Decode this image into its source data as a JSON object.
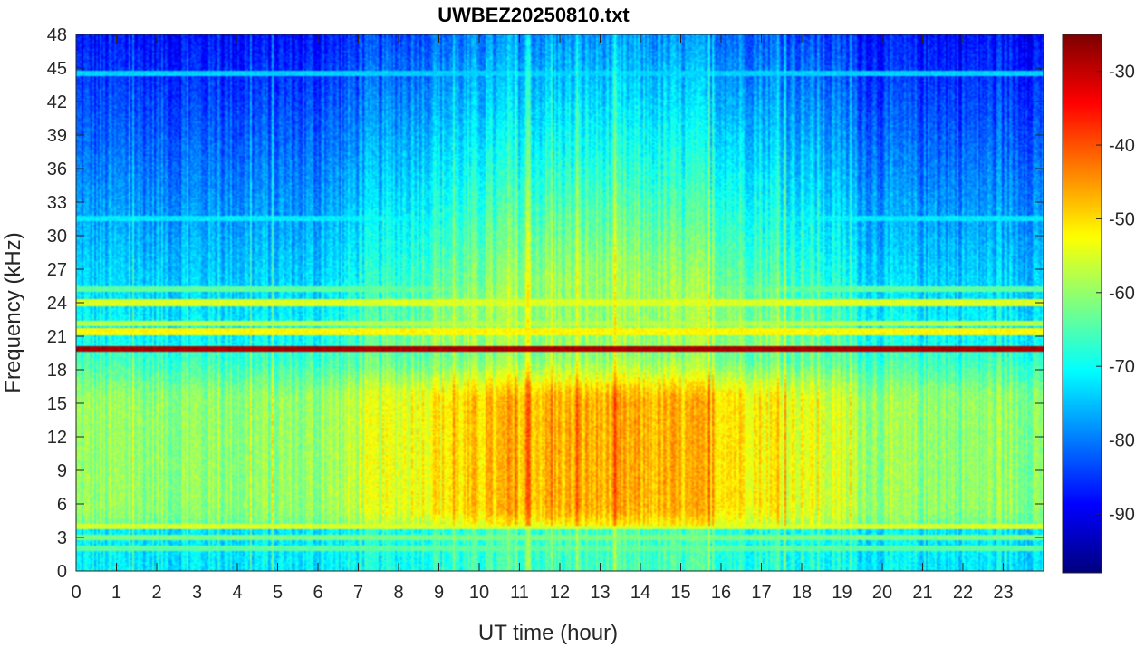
{
  "chart_data": {
    "type": "heatmap",
    "title": "UWBEZ20250810.txt",
    "xlabel": "UT time (hour)",
    "ylabel": "Frequency (kHz)",
    "xlim": [
      0,
      24
    ],
    "ylim": [
      0,
      48
    ],
    "x_ticks": [
      0,
      1,
      2,
      3,
      4,
      5,
      6,
      7,
      8,
      9,
      10,
      11,
      12,
      13,
      14,
      15,
      16,
      17,
      18,
      19,
      20,
      21,
      22,
      23
    ],
    "y_ticks": [
      0,
      3,
      6,
      9,
      12,
      15,
      18,
      21,
      24,
      27,
      30,
      33,
      36,
      39,
      42,
      45,
      48
    ],
    "colorbar": {
      "colormap": "jet",
      "clim": [
        -98,
        -25
      ],
      "ticks": [
        -90,
        -80,
        -70,
        -60,
        -50,
        -40,
        -30
      ]
    },
    "grid": false,
    "features": {
      "narrowband_lines_khz": [
        {
          "freq": 19.8,
          "level": -28
        },
        {
          "freq": 21.4,
          "level": -52
        },
        {
          "freq": 22.1,
          "level": -58
        },
        {
          "freq": 24.0,
          "level": -55
        },
        {
          "freq": 25.2,
          "level": -64
        },
        {
          "freq": 4.0,
          "level": -55
        },
        {
          "freq": 3.0,
          "level": -62
        },
        {
          "freq": 2.0,
          "level": -64
        },
        {
          "freq": 31.5,
          "level": -72
        },
        {
          "freq": 44.5,
          "level": -74
        }
      ],
      "broadband_max_hours": [
        9,
        17
      ],
      "broadband_peak_band_khz": [
        6,
        15
      ],
      "broadband_peak_level": -47,
      "background_level_night_high_freq": -88
    }
  }
}
